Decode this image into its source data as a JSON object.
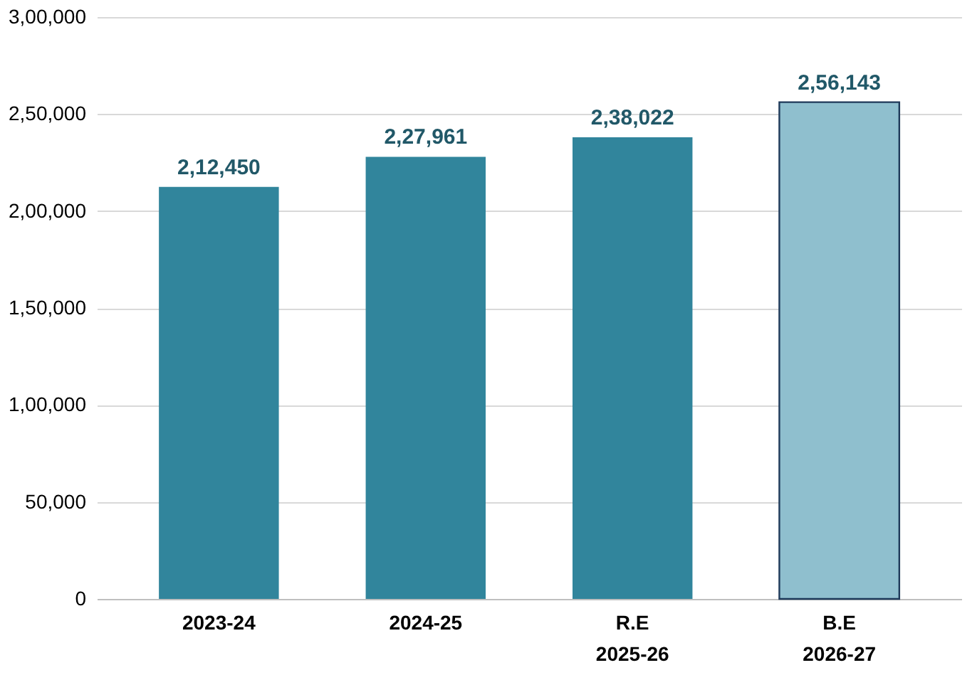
{
  "chart_data": {
    "type": "bar",
    "categories": [
      "2023-24",
      "2024-25",
      "R.E\n2025-26",
      "B.E\n2026-27"
    ],
    "values": [
      212450,
      227961,
      238022,
      256143
    ],
    "value_labels": [
      "2,12,450",
      "2,27,961",
      "2,38,022",
      "2,56,143"
    ],
    "colors": [
      "#31859c",
      "#31859c",
      "#31859c",
      "#8fbfce"
    ],
    "ylim": [
      0,
      300000
    ],
    "yticks": [
      {
        "value": 0,
        "label": "0"
      },
      {
        "value": 50000,
        "label": "50,000"
      },
      {
        "value": 100000,
        "label": "1,00,000"
      },
      {
        "value": 150000,
        "label": "1,50,000"
      },
      {
        "value": 200000,
        "label": "2,00,000"
      },
      {
        "value": 250000,
        "label": "2,50,000"
      },
      {
        "value": 300000,
        "label": "3,00,000"
      }
    ],
    "grid": "y"
  }
}
